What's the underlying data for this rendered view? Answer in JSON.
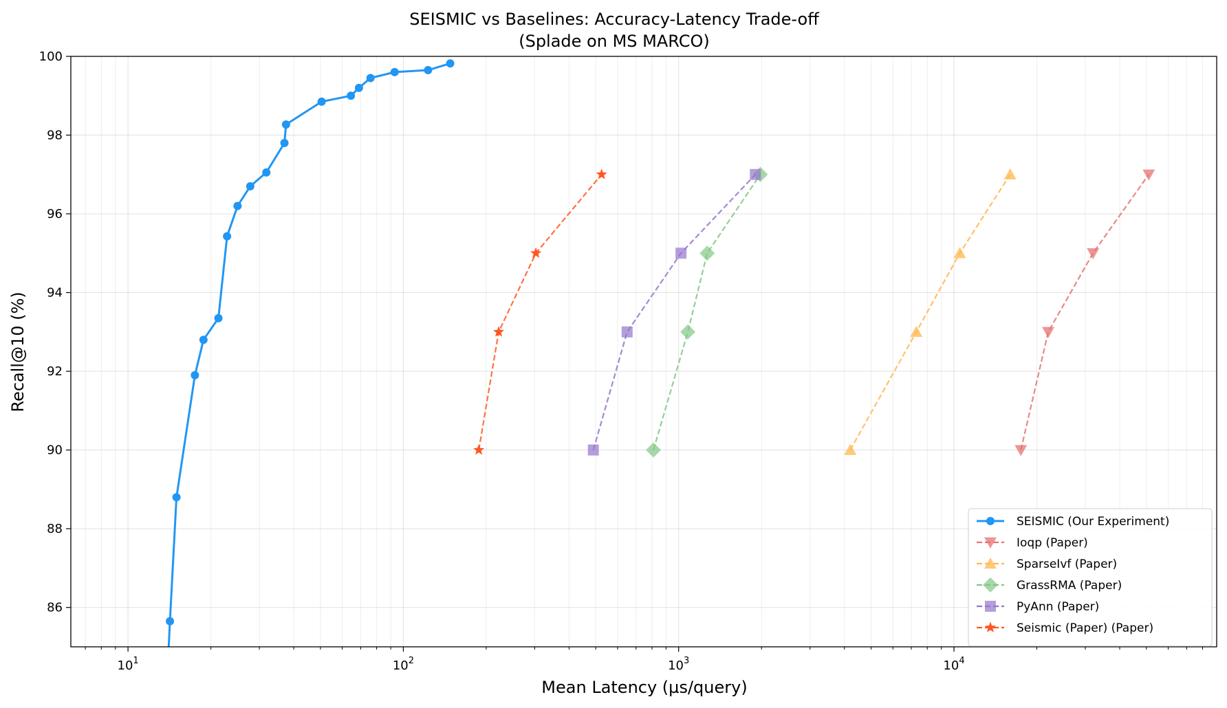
{
  "chart_data": {
    "type": "line",
    "title": "SEISMIC vs Baselines: Accuracy-Latency Trade-off",
    "subtitle": "(Splade on MS MARCO)",
    "xlabel": "Mean Latency (µs/query)",
    "ylabel": "Recall@10 (%)",
    "xscale": "log",
    "xlim": [
      6.2,
      90000
    ],
    "ylim": [
      85,
      100
    ],
    "x_ticks": [
      {
        "value": 10,
        "base": "10",
        "exp": "1"
      },
      {
        "value": 100,
        "base": "10",
        "exp": "2"
      },
      {
        "value": 1000,
        "base": "10",
        "exp": "3"
      },
      {
        "value": 10000,
        "base": "10",
        "exp": "4"
      }
    ],
    "y_ticks": [
      "86",
      "88",
      "90",
      "92",
      "94",
      "96",
      "98",
      "100"
    ],
    "grid": true,
    "legend_position": "bottom-right",
    "series": [
      {
        "name": "SEISMIC (Our Experiment)",
        "color": "#2196F3",
        "marker": "circle",
        "linestyle": "solid",
        "x": [
          13.9,
          14.2,
          15.0,
          17.5,
          18.8,
          21.3,
          22.9,
          25.0,
          27.8,
          31.8,
          37.0,
          37.5,
          50.5,
          64.5,
          69.0,
          76.0,
          93.0,
          123.0,
          148.0
        ],
        "y": [
          84.3,
          85.65,
          88.8,
          91.9,
          92.8,
          93.35,
          95.43,
          96.2,
          96.7,
          97.05,
          97.8,
          98.27,
          98.85,
          99.0,
          99.2,
          99.45,
          99.6,
          99.65,
          99.82
        ]
      },
      {
        "name": "Ioqp (Paper)",
        "color": "#E57373",
        "marker": "triangle-down",
        "linestyle": "dashed",
        "x": [
          17500,
          22000,
          32000,
          51000
        ],
        "y": [
          90,
          93,
          95,
          97
        ]
      },
      {
        "name": "SparseIvf (Paper)",
        "color": "#FFB74D",
        "marker": "triangle-up",
        "linestyle": "dashed",
        "x": [
          4200,
          7300,
          10500,
          16000
        ],
        "y": [
          90,
          93,
          95,
          97
        ]
      },
      {
        "name": "GrassRMA (Paper)",
        "color": "#81C784",
        "marker": "diamond",
        "linestyle": "dashed",
        "x": [
          810,
          1080,
          1270,
          1980
        ],
        "y": [
          90,
          93,
          95,
          97
        ]
      },
      {
        "name": "PyAnn (Paper)",
        "color": "#9575CD",
        "marker": "square",
        "linestyle": "dashed",
        "x": [
          490,
          650,
          1020,
          1900
        ],
        "y": [
          90,
          93,
          95,
          97
        ]
      },
      {
        "name": "Seismic (Paper) (Paper)",
        "color": "#FF5722",
        "marker": "star",
        "linestyle": "dashed",
        "x": [
          188,
          222,
          303,
          525
        ],
        "y": [
          90,
          93,
          95,
          97
        ]
      }
    ]
  }
}
